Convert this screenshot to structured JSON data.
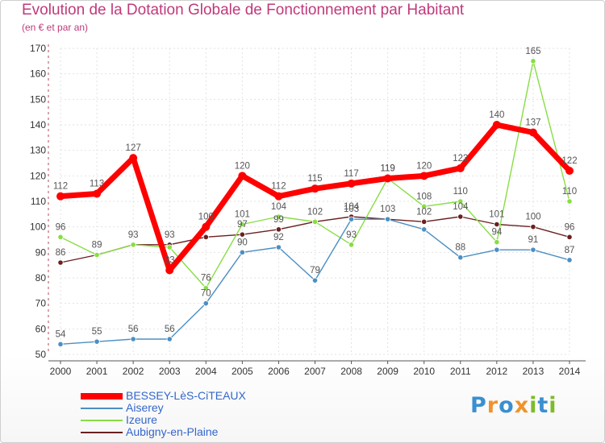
{
  "header": {
    "title": "Evolution de la Dotation Globale de Fonctionnement par Habitant",
    "subtitle": "(en € et par an)"
  },
  "logo": {
    "text": "Proxiti",
    "letters": [
      "P",
      "r",
      "o",
      "x",
      "i",
      "t",
      "i"
    ],
    "colors": [
      "#3a8fd0",
      "#f0932b",
      "#3a8fd0",
      "#f0932b",
      "#7dbb29",
      "#3a8fd0",
      "#7dbb29"
    ]
  },
  "chart_data": {
    "type": "line",
    "title": "Evolution de la Dotation Globale de Fonctionnement par Habitant",
    "subtitle": "(en € et par an)",
    "xlabel": "",
    "ylabel": "",
    "ylim": [
      50,
      170
    ],
    "yticks": [
      50,
      60,
      70,
      80,
      90,
      100,
      110,
      120,
      130,
      140,
      150,
      160,
      170
    ],
    "x": [
      "2000",
      "2001",
      "2002",
      "2003",
      "2004",
      "2005",
      "2006",
      "2007",
      "2008",
      "2009",
      "2010",
      "2011",
      "2012",
      "2013",
      "2014"
    ],
    "grid": true,
    "legend_position": "bottom-left",
    "series": [
      {
        "name": "Aubigny-en-Plaine",
        "color": "#6b1f1f",
        "values": [
          86,
          89,
          93,
          93,
          96,
          97,
          99,
          102,
          104,
          103,
          102,
          104,
          101,
          100,
          96
        ]
      },
      {
        "name": "Izeure",
        "color": "#88dd44",
        "values": [
          96,
          89,
          93,
          92,
          76,
          101,
          104,
          102,
          93,
          119,
          108,
          110,
          94,
          165,
          110
        ]
      },
      {
        "name": "Aiserey",
        "color": "#4c8fc2",
        "values": [
          54,
          55,
          56,
          56,
          70,
          90,
          92,
          79,
          103,
          103,
          99,
          88,
          91,
          91,
          87
        ]
      },
      {
        "name": "BESSEY-LèS-CiTEAUX",
        "color": "#ff0000",
        "values": [
          112,
          113,
          127,
          83,
          100,
          120,
          112,
          115,
          117,
          119,
          120,
          123,
          140,
          137,
          122
        ]
      }
    ],
    "labels": [
      {
        "series": "Aubigny-en-Plaine",
        "index": 0,
        "text": "86"
      },
      {
        "series": "Aubigny-en-Plaine",
        "index": 1,
        "text": "89"
      },
      {
        "series": "Aubigny-en-Plaine",
        "index": 2,
        "text": "93"
      },
      {
        "series": "Aubigny-en-Plaine",
        "index": 3,
        "text": "93"
      },
      {
        "series": "Aubigny-en-Plaine",
        "index": 5,
        "text": "97"
      },
      {
        "series": "Aubigny-en-Plaine",
        "index": 6,
        "text": "99"
      },
      {
        "series": "Aubigny-en-Plaine",
        "index": 7,
        "text": "102"
      },
      {
        "series": "Aubigny-en-Plaine",
        "index": 8,
        "text": "104"
      },
      {
        "series": "Aubigny-en-Plaine",
        "index": 9,
        "text": "103"
      },
      {
        "series": "Aubigny-en-Plaine",
        "index": 10,
        "text": "102"
      },
      {
        "series": "Aubigny-en-Plaine",
        "index": 11,
        "text": "104"
      },
      {
        "series": "Aubigny-en-Plaine",
        "index": 12,
        "text": "101"
      },
      {
        "series": "Aubigny-en-Plaine",
        "index": 13,
        "text": "100"
      },
      {
        "series": "Aubigny-en-Plaine",
        "index": 14,
        "text": "96"
      },
      {
        "series": "Izeure",
        "index": 0,
        "text": "96"
      },
      {
        "series": "Izeure",
        "index": 4,
        "text": "76"
      },
      {
        "series": "Izeure",
        "index": 5,
        "text": "101"
      },
      {
        "series": "Izeure",
        "index": 6,
        "text": "104"
      },
      {
        "series": "Izeure",
        "index": 8,
        "text": "93"
      },
      {
        "series": "Izeure",
        "index": 9,
        "text": "119"
      },
      {
        "series": "Izeure",
        "index": 10,
        "text": "108"
      },
      {
        "series": "Izeure",
        "index": 11,
        "text": "110"
      },
      {
        "series": "Izeure",
        "index": 12,
        "text": "94"
      },
      {
        "series": "Izeure",
        "index": 13,
        "text": "165"
      },
      {
        "series": "Izeure",
        "index": 14,
        "text": "110"
      },
      {
        "series": "Aiserey",
        "index": 0,
        "text": "54"
      },
      {
        "series": "Aiserey",
        "index": 1,
        "text": "55"
      },
      {
        "series": "Aiserey",
        "index": 2,
        "text": "56"
      },
      {
        "series": "Aiserey",
        "index": 3,
        "text": "56"
      },
      {
        "series": "Aiserey",
        "index": 4,
        "text": "70"
      },
      {
        "series": "Aiserey",
        "index": 5,
        "text": "90"
      },
      {
        "series": "Aiserey",
        "index": 6,
        "text": "92"
      },
      {
        "series": "Aiserey",
        "index": 7,
        "text": "79"
      },
      {
        "series": "Aiserey",
        "index": 8,
        "text": "103"
      },
      {
        "series": "Aiserey",
        "index": 11,
        "text": "88"
      },
      {
        "series": "Aiserey",
        "index": 13,
        "text": "91"
      },
      {
        "series": "Aiserey",
        "index": 14,
        "text": "87"
      },
      {
        "series": "BESSEY-LèS-CiTEAUX",
        "index": 0,
        "text": "112"
      },
      {
        "series": "BESSEY-LèS-CiTEAUX",
        "index": 1,
        "text": "113"
      },
      {
        "series": "BESSEY-LèS-CiTEAUX",
        "index": 2,
        "text": "127"
      },
      {
        "series": "BESSEY-LèS-CiTEAUX",
        "index": 3,
        "text": "83"
      },
      {
        "series": "BESSEY-LèS-CiTEAUX",
        "index": 4,
        "text": "100"
      },
      {
        "series": "BESSEY-LèS-CiTEAUX",
        "index": 5,
        "text": "120"
      },
      {
        "series": "BESSEY-LèS-CiTEAUX",
        "index": 6,
        "text": "112"
      },
      {
        "series": "BESSEY-LèS-CiTEAUX",
        "index": 7,
        "text": "115"
      },
      {
        "series": "BESSEY-LèS-CiTEAUX",
        "index": 8,
        "text": "117"
      },
      {
        "series": "BESSEY-LèS-CiTEAUX",
        "index": 9,
        "text": "119"
      },
      {
        "series": "BESSEY-LèS-CiTEAUX",
        "index": 10,
        "text": "120"
      },
      {
        "series": "BESSEY-LèS-CiTEAUX",
        "index": 11,
        "text": "123"
      },
      {
        "series": "BESSEY-LèS-CiTEAUX",
        "index": 12,
        "text": "140"
      },
      {
        "series": "BESSEY-LèS-CiTEAUX",
        "index": 13,
        "text": "137"
      },
      {
        "series": "BESSEY-LèS-CiTEAUX",
        "index": 14,
        "text": "122"
      }
    ],
    "legend": [
      "BESSEY-LèS-CiTEAUX",
      "Aiserey",
      "Izeure",
      "Aubigny-en-Plaine"
    ]
  }
}
